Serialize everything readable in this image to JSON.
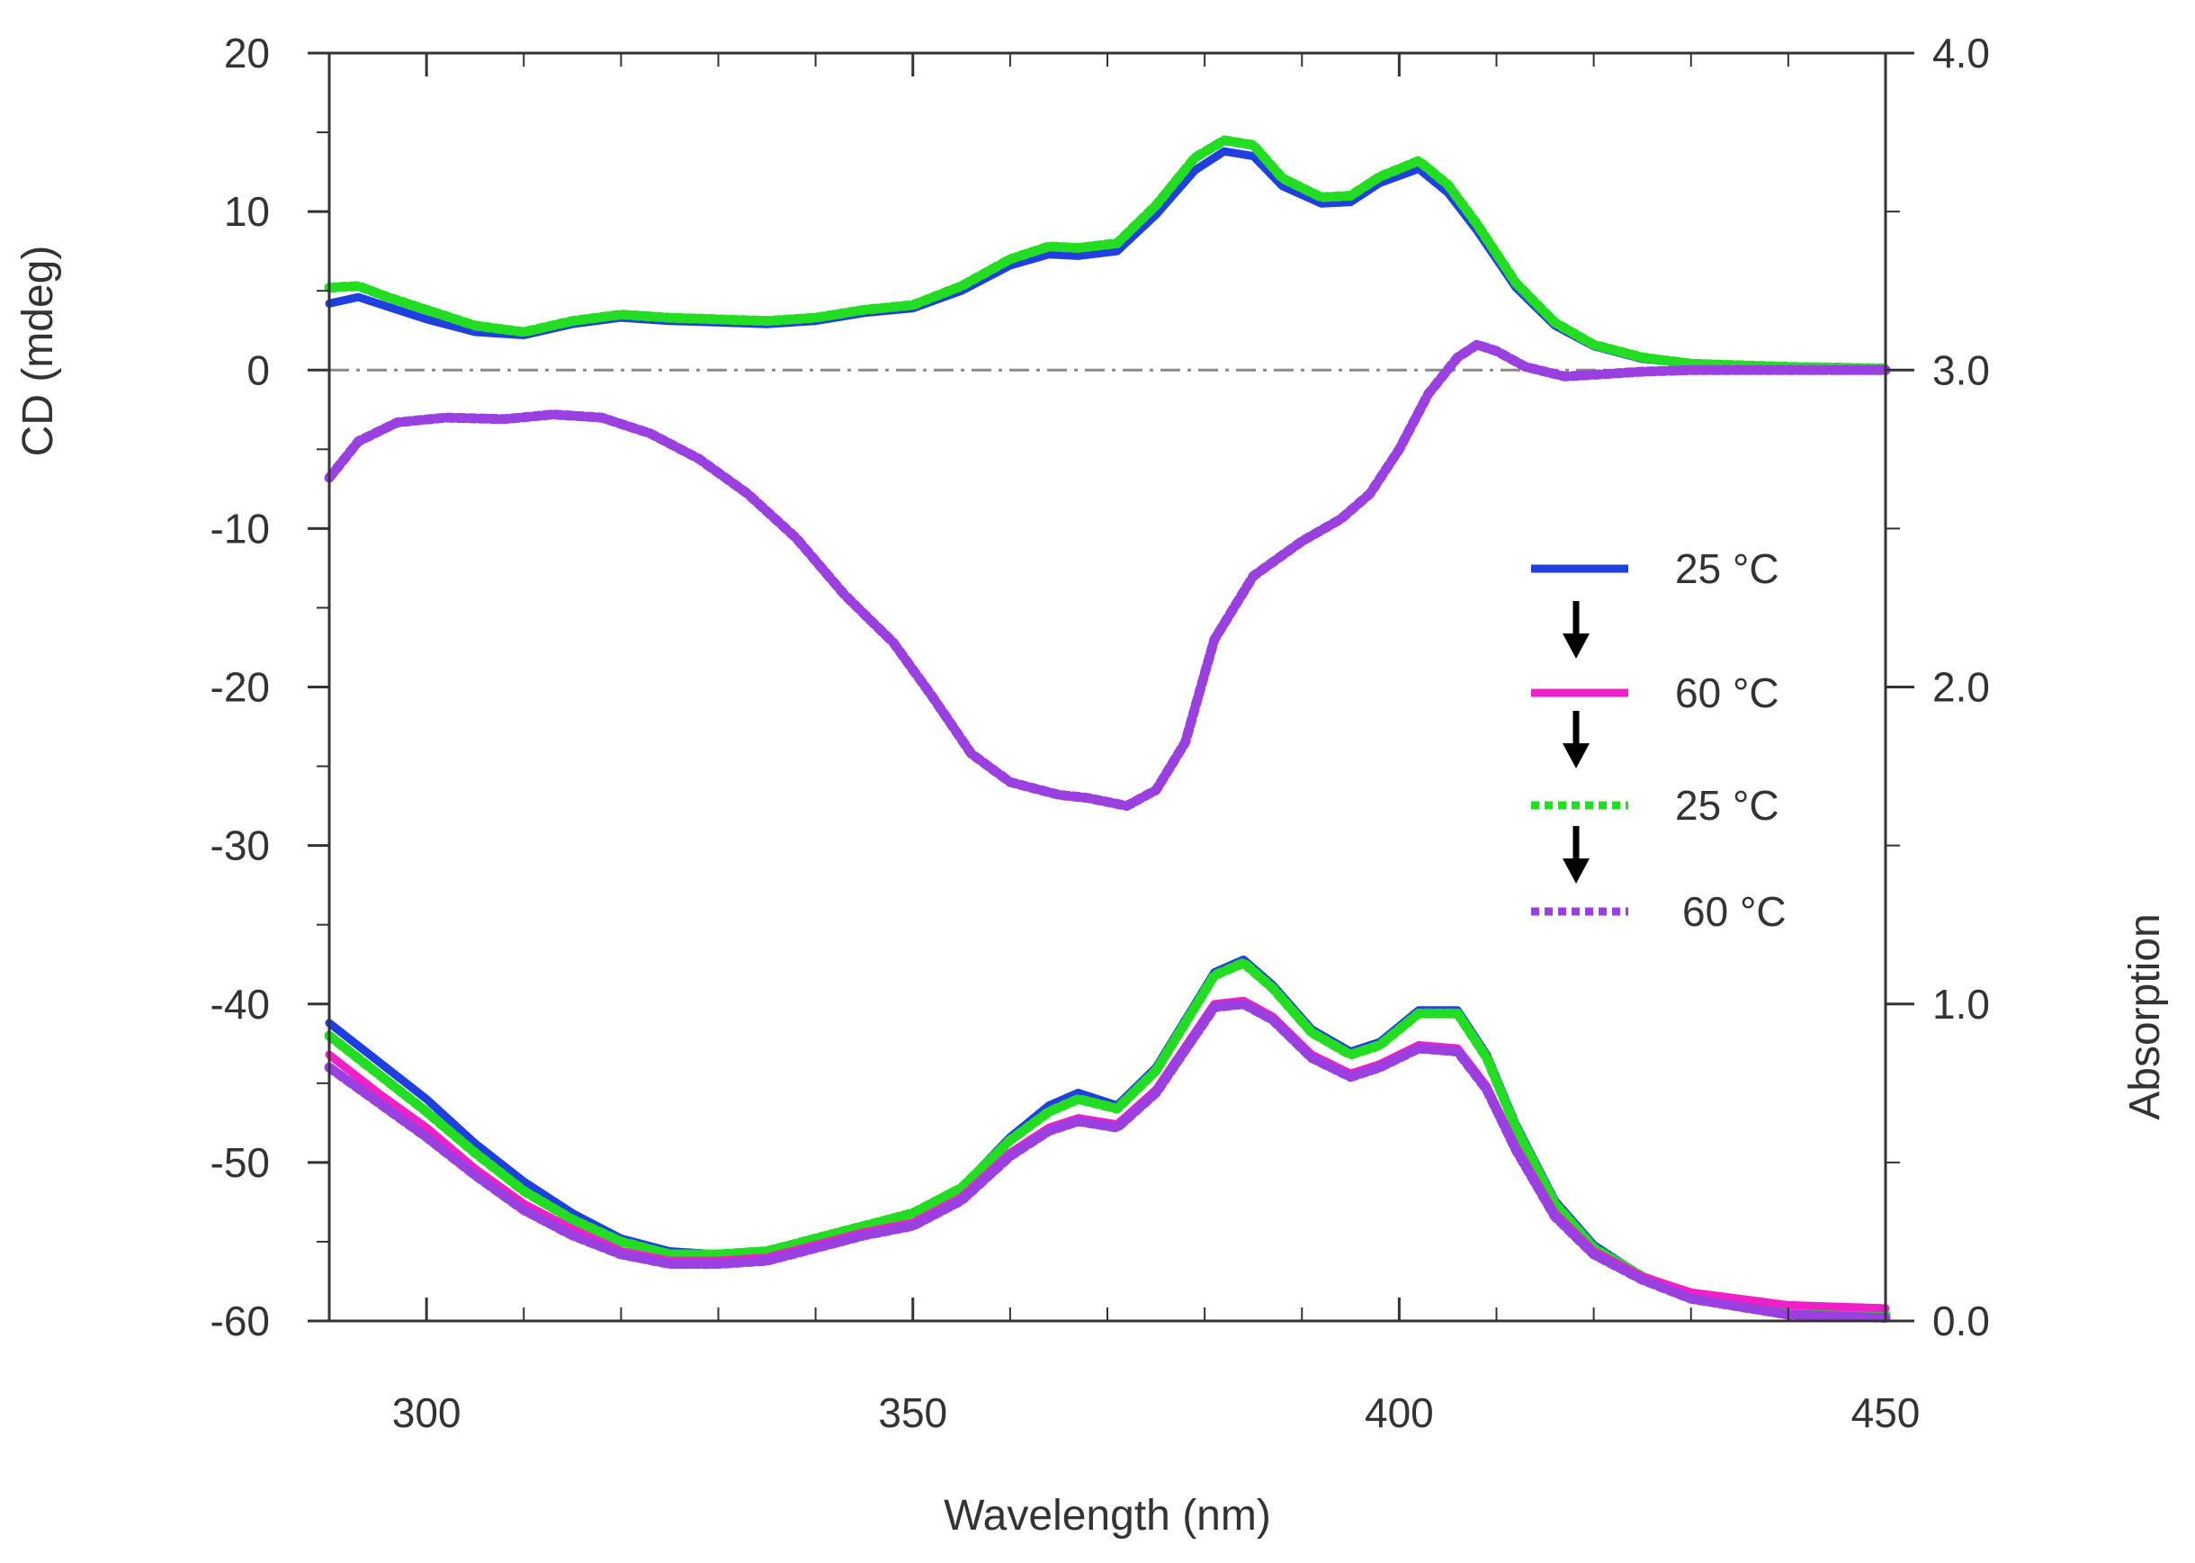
{
  "chart_data": {
    "type": "line",
    "title": "",
    "xlabel": "Wavelength (nm)",
    "ylabel": "CD (mdeg)",
    "y2label": "Absorption",
    "xlim": [
      290,
      450
    ],
    "ylim": [
      -60,
      20
    ],
    "y2lim": [
      0.0,
      4.0
    ],
    "x_ticks": [
      "300",
      "350",
      "400",
      "450"
    ],
    "y_ticks": [
      "20",
      "10",
      "0",
      "-10",
      "-20",
      "-30",
      "-40",
      "-50",
      "-60"
    ],
    "y2_ticks": [
      "4.0",
      "3.0",
      "2.0",
      "1.0",
      "0.0"
    ],
    "zero_line": true,
    "legend": {
      "placement": "center-right",
      "entries": [
        {
          "label": "25 °C",
          "color": "#1f3fe0",
          "style": "solid"
        },
        {
          "label": "60 °C",
          "color": "#f020c8",
          "style": "solid"
        },
        {
          "label": "25 °C",
          "color": "#22dd22",
          "style": "dotted"
        },
        {
          "label": "60 °C",
          "color": "#9a40e0",
          "style": "dotted"
        }
      ]
    },
    "series": [
      {
        "group": "CD",
        "axis": "left",
        "color": "#1f3fe0",
        "style": "solid",
        "points": [
          [
            290,
            4.2
          ],
          [
            293,
            4.6
          ],
          [
            296,
            4.0
          ],
          [
            300,
            3.2
          ],
          [
            305,
            2.4
          ],
          [
            310,
            2.2
          ],
          [
            315,
            2.9
          ],
          [
            320,
            3.3
          ],
          [
            325,
            3.1
          ],
          [
            330,
            3.0
          ],
          [
            335,
            2.9
          ],
          [
            340,
            3.1
          ],
          [
            345,
            3.6
          ],
          [
            350,
            3.9
          ],
          [
            355,
            5.0
          ],
          [
            360,
            6.6
          ],
          [
            364,
            7.3
          ],
          [
            367,
            7.2
          ],
          [
            371,
            7.5
          ],
          [
            375,
            9.8
          ],
          [
            379,
            12.6
          ],
          [
            382,
            13.8
          ],
          [
            385,
            13.5
          ],
          [
            388,
            11.6
          ],
          [
            392,
            10.5
          ],
          [
            395,
            10.6
          ],
          [
            398,
            11.8
          ],
          [
            402,
            12.7
          ],
          [
            405,
            11.2
          ],
          [
            408,
            8.8
          ],
          [
            412,
            5.2
          ],
          [
            416,
            2.8
          ],
          [
            420,
            1.5
          ],
          [
            425,
            0.7
          ],
          [
            430,
            0.4
          ],
          [
            440,
            0.2
          ],
          [
            450,
            0.1
          ]
        ]
      },
      {
        "group": "CD",
        "axis": "left",
        "color": "#22dd22",
        "style": "dotted",
        "points": [
          [
            290,
            5.2
          ],
          [
            293,
            5.3
          ],
          [
            296,
            4.6
          ],
          [
            300,
            3.8
          ],
          [
            305,
            2.8
          ],
          [
            310,
            2.4
          ],
          [
            315,
            3.1
          ],
          [
            320,
            3.5
          ],
          [
            325,
            3.3
          ],
          [
            330,
            3.2
          ],
          [
            335,
            3.1
          ],
          [
            340,
            3.3
          ],
          [
            345,
            3.8
          ],
          [
            350,
            4.1
          ],
          [
            355,
            5.3
          ],
          [
            360,
            7.0
          ],
          [
            364,
            7.8
          ],
          [
            367,
            7.7
          ],
          [
            371,
            8.0
          ],
          [
            375,
            10.4
          ],
          [
            379,
            13.4
          ],
          [
            382,
            14.5
          ],
          [
            385,
            14.2
          ],
          [
            388,
            12.1
          ],
          [
            392,
            10.9
          ],
          [
            395,
            11.0
          ],
          [
            398,
            12.2
          ],
          [
            402,
            13.2
          ],
          [
            405,
            11.7
          ],
          [
            408,
            9.2
          ],
          [
            412,
            5.5
          ],
          [
            416,
            3.0
          ],
          [
            420,
            1.6
          ],
          [
            425,
            0.8
          ],
          [
            430,
            0.4
          ],
          [
            440,
            0.2
          ],
          [
            450,
            0.1
          ]
        ]
      },
      {
        "group": "CD",
        "axis": "left",
        "color": "#f020c8",
        "style": "solid",
        "points": [
          [
            290,
            -6.8
          ],
          [
            293,
            -4.5
          ],
          [
            297,
            -3.3
          ],
          [
            302,
            -3.0
          ],
          [
            308,
            -3.1
          ],
          [
            313,
            -2.8
          ],
          [
            318,
            -3.0
          ],
          [
            323,
            -4.0
          ],
          [
            328,
            -5.6
          ],
          [
            333,
            -7.8
          ],
          [
            338,
            -10.6
          ],
          [
            343,
            -14.2
          ],
          [
            348,
            -17.2
          ],
          [
            352,
            -20.6
          ],
          [
            356,
            -24.2
          ],
          [
            360,
            -26.0
          ],
          [
            365,
            -26.8
          ],
          [
            368,
            -27.0
          ],
          [
            372,
            -27.5
          ],
          [
            375,
            -26.5
          ],
          [
            378,
            -23.5
          ],
          [
            381,
            -17.0
          ],
          [
            385,
            -13.0
          ],
          [
            390,
            -10.8
          ],
          [
            394,
            -9.4
          ],
          [
            397,
            -7.8
          ],
          [
            400,
            -5.0
          ],
          [
            403,
            -1.5
          ],
          [
            406,
            0.8
          ],
          [
            408,
            1.6
          ],
          [
            410,
            1.2
          ],
          [
            413,
            0.2
          ],
          [
            417,
            -0.4
          ],
          [
            420,
            -0.3
          ],
          [
            425,
            -0.1
          ],
          [
            430,
            0.0
          ],
          [
            440,
            0.0
          ],
          [
            450,
            0.0
          ]
        ]
      },
      {
        "group": "CD",
        "axis": "left",
        "color": "#9a40e0",
        "style": "dotted",
        "points": [
          [
            290,
            -6.8
          ],
          [
            293,
            -4.5
          ],
          [
            297,
            -3.3
          ],
          [
            302,
            -3.0
          ],
          [
            308,
            -3.1
          ],
          [
            313,
            -2.8
          ],
          [
            318,
            -3.0
          ],
          [
            323,
            -4.0
          ],
          [
            328,
            -5.6
          ],
          [
            333,
            -7.8
          ],
          [
            338,
            -10.6
          ],
          [
            343,
            -14.2
          ],
          [
            348,
            -17.2
          ],
          [
            352,
            -20.6
          ],
          [
            356,
            -24.2
          ],
          [
            360,
            -26.0
          ],
          [
            365,
            -26.8
          ],
          [
            368,
            -27.0
          ],
          [
            372,
            -27.5
          ],
          [
            375,
            -26.5
          ],
          [
            378,
            -23.5
          ],
          [
            381,
            -17.0
          ],
          [
            385,
            -13.0
          ],
          [
            390,
            -10.8
          ],
          [
            394,
            -9.4
          ],
          [
            397,
            -7.8
          ],
          [
            400,
            -5.0
          ],
          [
            403,
            -1.5
          ],
          [
            406,
            0.8
          ],
          [
            408,
            1.6
          ],
          [
            410,
            1.2
          ],
          [
            413,
            0.2
          ],
          [
            417,
            -0.4
          ],
          [
            420,
            -0.3
          ],
          [
            425,
            -0.1
          ],
          [
            430,
            0.0
          ],
          [
            440,
            0.0
          ],
          [
            450,
            0.0
          ]
        ]
      },
      {
        "group": "Absorption",
        "axis": "right",
        "color": "#1f3fe0",
        "style": "solid",
        "points": [
          [
            290,
            0.94
          ],
          [
            295,
            0.82
          ],
          [
            300,
            0.7
          ],
          [
            305,
            0.56
          ],
          [
            310,
            0.44
          ],
          [
            315,
            0.34
          ],
          [
            320,
            0.26
          ],
          [
            325,
            0.22
          ],
          [
            330,
            0.21
          ],
          [
            335,
            0.22
          ],
          [
            340,
            0.26
          ],
          [
            345,
            0.3
          ],
          [
            350,
            0.34
          ],
          [
            355,
            0.42
          ],
          [
            360,
            0.58
          ],
          [
            364,
            0.68
          ],
          [
            367,
            0.72
          ],
          [
            371,
            0.68
          ],
          [
            375,
            0.8
          ],
          [
            379,
            1.0
          ],
          [
            381,
            1.1
          ],
          [
            384,
            1.14
          ],
          [
            387,
            1.06
          ],
          [
            391,
            0.92
          ],
          [
            395,
            0.85
          ],
          [
            398,
            0.88
          ],
          [
            402,
            0.98
          ],
          [
            406,
            0.98
          ],
          [
            409,
            0.84
          ],
          [
            412,
            0.62
          ],
          [
            416,
            0.38
          ],
          [
            420,
            0.24
          ],
          [
            425,
            0.14
          ],
          [
            430,
            0.08
          ],
          [
            440,
            0.03
          ],
          [
            450,
            0.02
          ]
        ]
      },
      {
        "group": "Absorption",
        "axis": "right",
        "color": "#22dd22",
        "style": "dotted",
        "points": [
          [
            290,
            0.9
          ],
          [
            295,
            0.78
          ],
          [
            300,
            0.66
          ],
          [
            305,
            0.53
          ],
          [
            310,
            0.41
          ],
          [
            315,
            0.32
          ],
          [
            320,
            0.25
          ],
          [
            325,
            0.21
          ],
          [
            330,
            0.21
          ],
          [
            335,
            0.22
          ],
          [
            340,
            0.26
          ],
          [
            345,
            0.3
          ],
          [
            350,
            0.34
          ],
          [
            355,
            0.42
          ],
          [
            360,
            0.57
          ],
          [
            364,
            0.66
          ],
          [
            367,
            0.7
          ],
          [
            371,
            0.67
          ],
          [
            375,
            0.79
          ],
          [
            379,
            0.99
          ],
          [
            381,
            1.09
          ],
          [
            384,
            1.13
          ],
          [
            387,
            1.05
          ],
          [
            391,
            0.91
          ],
          [
            395,
            0.84
          ],
          [
            398,
            0.87
          ],
          [
            402,
            0.97
          ],
          [
            406,
            0.97
          ],
          [
            409,
            0.83
          ],
          [
            412,
            0.61
          ],
          [
            416,
            0.37
          ],
          [
            420,
            0.23
          ],
          [
            425,
            0.14
          ],
          [
            430,
            0.08
          ],
          [
            440,
            0.03
          ],
          [
            450,
            0.02
          ]
        ]
      },
      {
        "group": "Absorption",
        "axis": "right",
        "color": "#f020c8",
        "style": "solid",
        "points": [
          [
            290,
            0.84
          ],
          [
            295,
            0.72
          ],
          [
            300,
            0.61
          ],
          [
            305,
            0.48
          ],
          [
            310,
            0.37
          ],
          [
            315,
            0.29
          ],
          [
            320,
            0.22
          ],
          [
            325,
            0.19
          ],
          [
            330,
            0.19
          ],
          [
            335,
            0.2
          ],
          [
            340,
            0.24
          ],
          [
            345,
            0.28
          ],
          [
            350,
            0.31
          ],
          [
            355,
            0.39
          ],
          [
            360,
            0.53
          ],
          [
            364,
            0.61
          ],
          [
            367,
            0.64
          ],
          [
            371,
            0.62
          ],
          [
            375,
            0.73
          ],
          [
            379,
            0.91
          ],
          [
            381,
            1.0
          ],
          [
            384,
            1.01
          ],
          [
            387,
            0.96
          ],
          [
            391,
            0.84
          ],
          [
            395,
            0.78
          ],
          [
            398,
            0.81
          ],
          [
            402,
            0.87
          ],
          [
            406,
            0.86
          ],
          [
            409,
            0.74
          ],
          [
            412,
            0.55
          ],
          [
            416,
            0.34
          ],
          [
            420,
            0.22
          ],
          [
            425,
            0.14
          ],
          [
            430,
            0.09
          ],
          [
            440,
            0.05
          ],
          [
            450,
            0.04
          ]
        ]
      },
      {
        "group": "Absorption",
        "axis": "right",
        "color": "#9a40e0",
        "style": "dotted",
        "points": [
          [
            290,
            0.8
          ],
          [
            295,
            0.69
          ],
          [
            300,
            0.58
          ],
          [
            305,
            0.46
          ],
          [
            310,
            0.35
          ],
          [
            315,
            0.27
          ],
          [
            320,
            0.21
          ],
          [
            325,
            0.18
          ],
          [
            330,
            0.18
          ],
          [
            335,
            0.19
          ],
          [
            340,
            0.23
          ],
          [
            345,
            0.27
          ],
          [
            350,
            0.3
          ],
          [
            355,
            0.38
          ],
          [
            360,
            0.52
          ],
          [
            364,
            0.6
          ],
          [
            367,
            0.63
          ],
          [
            371,
            0.61
          ],
          [
            375,
            0.72
          ],
          [
            379,
            0.9
          ],
          [
            381,
            0.99
          ],
          [
            384,
            1.0
          ],
          [
            387,
            0.95
          ],
          [
            391,
            0.83
          ],
          [
            395,
            0.77
          ],
          [
            398,
            0.8
          ],
          [
            402,
            0.86
          ],
          [
            406,
            0.85
          ],
          [
            409,
            0.73
          ],
          [
            412,
            0.54
          ],
          [
            416,
            0.33
          ],
          [
            420,
            0.21
          ],
          [
            425,
            0.13
          ],
          [
            430,
            0.07
          ],
          [
            440,
            0.02
          ],
          [
            450,
            0.01
          ]
        ]
      }
    ]
  }
}
